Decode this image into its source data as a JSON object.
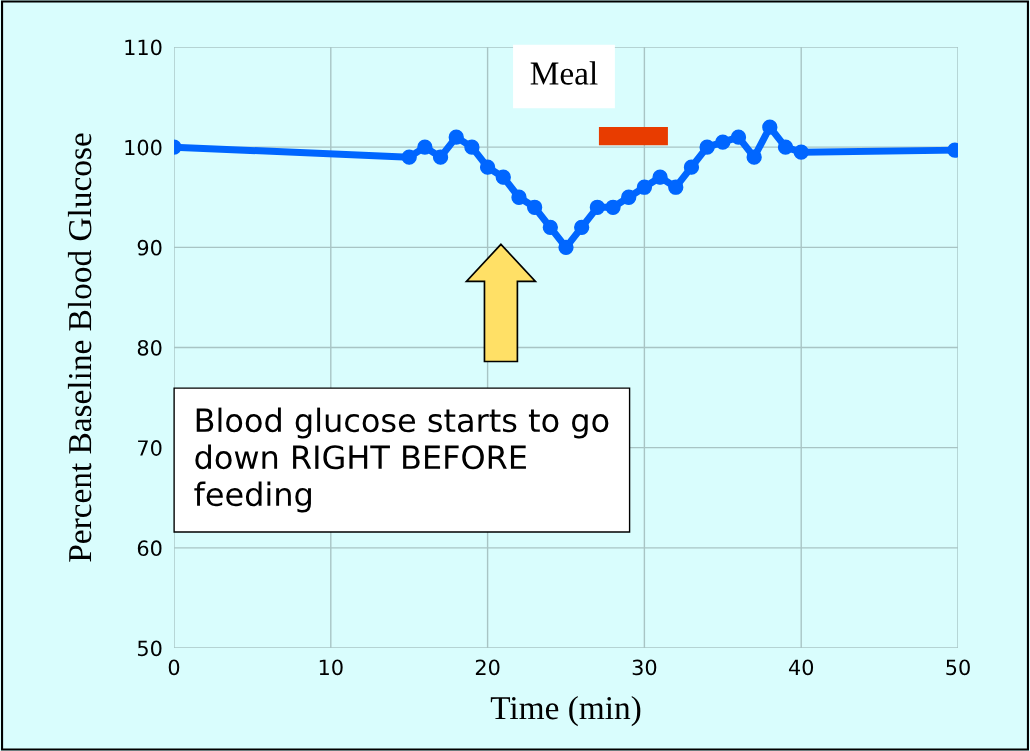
{
  "chart_data": {
    "type": "line",
    "xlabel": "Time (min)",
    "ylabel": "Percent Baseline Blood Glucose",
    "x": [
      0,
      15,
      16,
      17,
      18,
      19,
      20,
      21,
      22,
      23,
      24,
      25,
      26,
      27,
      28,
      29,
      30,
      31,
      32,
      33,
      34,
      35,
      36,
      37,
      38,
      39,
      40,
      49.8
    ],
    "series": [
      {
        "color": "#0066ff",
        "marker": "circle",
        "values": [
          100,
          99,
          100,
          99,
          101,
          100,
          98,
          97,
          95,
          94,
          92,
          90,
          92,
          94,
          94,
          95,
          96,
          97,
          96,
          98,
          100,
          100.5,
          101,
          99,
          102,
          100,
          99.5,
          99.7
        ]
      },
      {
        "name": "Meal",
        "color": "#e83c00",
        "marker": "none",
        "x": [
          27.1,
          31.5
        ],
        "values": [
          101.1,
          101.1
        ]
      }
    ],
    "xlim": [
      0,
      50
    ],
    "xticks": [
      0,
      10,
      20,
      30,
      40,
      50
    ],
    "ylim": [
      50,
      110
    ],
    "yticks": [
      50,
      60,
      70,
      80,
      90,
      100,
      110
    ],
    "grid": true,
    "line_style": "solid",
    "annotations": [
      "Blood glucose starts to go down RIGHT BEFORE feeding"
    ]
  }
}
